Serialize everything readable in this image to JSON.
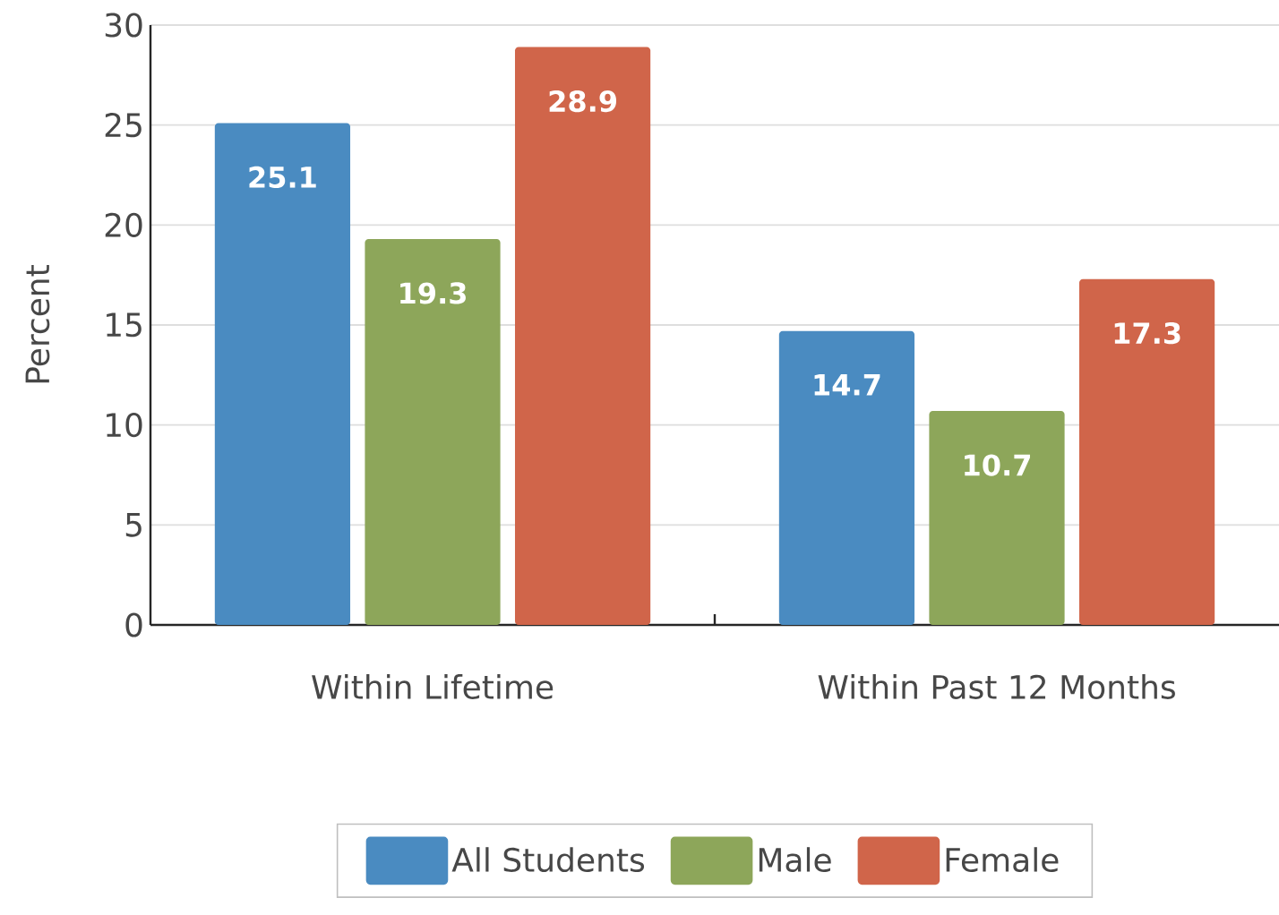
{
  "chart_data": {
    "type": "bar",
    "ylabel": "Percent",
    "categories": [
      "Within Lifetime",
      "Within Past 12 Months"
    ],
    "series": [
      {
        "name": "All Students",
        "color": "#4a8bc1",
        "values": [
          25.1,
          14.7
        ]
      },
      {
        "name": "Male",
        "color": "#8da65a",
        "values": [
          19.3,
          10.7
        ]
      },
      {
        "name": "Female",
        "color": "#d0654a",
        "values": [
          28.9,
          17.3
        ]
      }
    ],
    "ylim": [
      0,
      30
    ],
    "yticks": [
      0,
      5,
      10,
      15,
      20,
      25,
      30
    ],
    "grid": "y",
    "legend": "bottom",
    "data_labels": true
  }
}
